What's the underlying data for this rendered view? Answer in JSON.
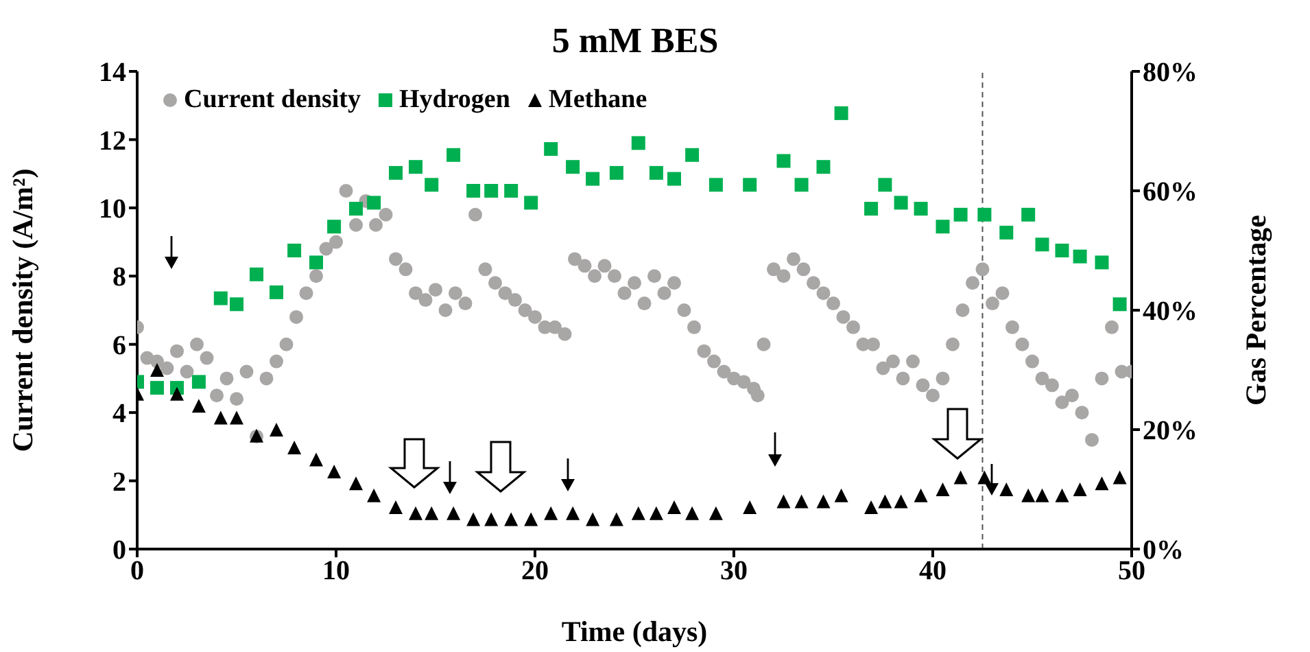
{
  "chart_data": {
    "type": "scatter",
    "title": "5 mM BES",
    "xlabel": "Time (days)",
    "ylabel": "Current density (A/m²)",
    "y2label": "Gas Percentage",
    "xlim": [
      0,
      50
    ],
    "xticks": [
      0,
      10,
      20,
      30,
      40,
      50
    ],
    "ylim": [
      0,
      14
    ],
    "yticks": [
      0,
      2,
      4,
      6,
      8,
      10,
      12,
      14
    ],
    "y2lim": [
      0,
      80
    ],
    "y2ticks": [
      {
        "value": 0,
        "label": "0%"
      },
      {
        "value": 20,
        "label": "20%"
      },
      {
        "value": 40,
        "label": "40%"
      },
      {
        "value": 60,
        "label": "60%"
      },
      {
        "value": 80,
        "label": "80%"
      }
    ],
    "legend": "top left",
    "ref_lines": [
      {
        "axis": "x",
        "value": 42.5,
        "line_style": "dashed",
        "color": "#555555"
      }
    ],
    "series": [
      {
        "name": "Current density",
        "color": "#a9a6a6",
        "marker": "circle",
        "x": [
          0,
          0.5,
          1,
          1.5,
          2,
          2.5,
          3,
          3.5,
          4,
          4.5,
          5,
          5.5,
          6,
          6.5,
          7,
          7.5,
          8,
          8.5,
          9,
          9.5,
          10,
          10.5,
          11,
          11.5,
          12,
          12.5,
          13,
          13.5,
          14,
          14.5,
          15,
          15.5,
          16,
          16.5,
          17,
          17.5,
          18,
          18.5,
          19,
          19.5,
          20,
          20.5,
          21,
          21.5,
          22,
          22.5,
          23,
          23.5,
          24,
          24.5,
          25,
          25.5,
          26,
          26.5,
          27,
          27.5,
          28,
          28.5,
          29,
          29.5,
          30,
          30.5,
          31,
          31.2,
          31.5,
          32,
          32.5,
          33,
          33.5,
          34,
          34.5,
          35,
          35.5,
          36,
          36.5,
          37,
          37.5,
          38,
          38.5,
          39,
          39.5,
          40,
          40.5,
          41,
          41.5,
          42,
          42.5,
          43,
          43.5,
          44,
          44.5,
          45,
          45.5,
          46,
          46.5,
          47,
          47.5,
          48,
          48.5,
          49,
          49.5,
          50
        ],
        "values": [
          6.5,
          5.6,
          5.5,
          5.3,
          5.8,
          5.2,
          6.0,
          5.6,
          4.5,
          5.0,
          4.4,
          5.2,
          3.3,
          5.0,
          5.5,
          6.0,
          6.8,
          7.5,
          8.0,
          8.8,
          9.0,
          10.5,
          9.5,
          10.2,
          9.5,
          9.8,
          8.5,
          8.2,
          7.5,
          7.3,
          7.6,
          7.0,
          7.5,
          7.2,
          9.8,
          8.2,
          7.8,
          7.5,
          7.3,
          7.0,
          6.8,
          6.5,
          6.5,
          6.3,
          8.5,
          8.3,
          8.0,
          8.3,
          8.0,
          7.5,
          7.8,
          7.2,
          8.0,
          7.5,
          7.8,
          7.0,
          6.5,
          5.8,
          5.5,
          5.2,
          5.0,
          4.9,
          4.7,
          4.5,
          6.0,
          8.2,
          8.0,
          8.5,
          8.2,
          7.8,
          7.5,
          7.2,
          6.8,
          6.5,
          6.0,
          6.0,
          5.3,
          5.5,
          5.0,
          5.5,
          4.8,
          4.5,
          5.0,
          6.0,
          7.0,
          7.8,
          8.2,
          7.2,
          7.5,
          6.5,
          6.0,
          5.5,
          5.0,
          4.8,
          4.3,
          4.5,
          4.0,
          3.2,
          5.0,
          6.5,
          5.2,
          5.2
        ]
      },
      {
        "name": "Hydrogen",
        "color": "#00b050",
        "marker": "square",
        "axis": "y2",
        "x": [
          0,
          1,
          2,
          3.1,
          4.2,
          5,
          6,
          7,
          7.9,
          9,
          9.9,
          11,
          11.9,
          13,
          14,
          14.8,
          15.9,
          16.9,
          17.8,
          18.8,
          19.8,
          20.8,
          21.9,
          22.9,
          24.1,
          25.2,
          26.1,
          27,
          27.9,
          29.1,
          30.8,
          32.5,
          33.4,
          34.5,
          35.4,
          36.9,
          37.6,
          38.4,
          39.4,
          40.5,
          41.4,
          42.6,
          43.7,
          44.8,
          45.5,
          46.5,
          47.4,
          48.5,
          49.4
        ],
        "values": [
          28,
          27,
          27,
          28,
          42,
          41,
          46,
          43,
          50,
          48,
          54,
          57,
          58,
          63,
          64,
          61,
          66,
          60,
          60,
          60,
          58,
          67,
          64,
          62,
          63,
          68,
          63,
          62,
          66,
          61,
          61,
          65,
          61,
          64,
          73,
          57,
          61,
          58,
          57,
          54,
          56,
          56,
          53,
          56,
          51,
          50,
          49,
          48,
          41
        ]
      },
      {
        "name": "Methane",
        "color": "#000000",
        "marker": "triangle",
        "axis": "y2",
        "x": [
          0,
          1,
          2,
          3.1,
          4.2,
          5,
          6,
          7,
          7.9,
          9,
          9.9,
          11,
          11.9,
          13,
          14,
          14.8,
          15.9,
          16.9,
          17.8,
          18.8,
          19.8,
          20.8,
          21.9,
          22.9,
          24.1,
          25.2,
          26.1,
          27,
          27.9,
          29.1,
          30.8,
          32.5,
          33.4,
          34.5,
          35.4,
          36.9,
          37.6,
          38.4,
          39.4,
          40.5,
          41.4,
          42.6,
          43.7,
          44.8,
          45.5,
          46.5,
          47.4,
          48.5,
          49.4
        ],
        "values": [
          26,
          30,
          26,
          24,
          22,
          22,
          19,
          20,
          17,
          15,
          13,
          11,
          9,
          7,
          6,
          6,
          6,
          5,
          5,
          5,
          5,
          6,
          6,
          5,
          5,
          6,
          6,
          7,
          6,
          6,
          7,
          8,
          8,
          8,
          9,
          7,
          8,
          8,
          9,
          10,
          12,
          12,
          10,
          9,
          9,
          9,
          10,
          11,
          12
        ]
      }
    ]
  }
}
